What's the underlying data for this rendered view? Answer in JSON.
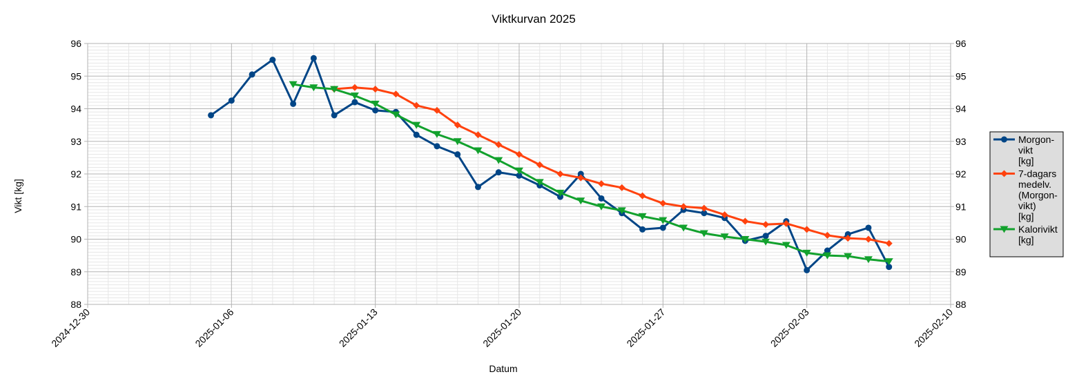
{
  "chart_data": {
    "type": "line",
    "title": "Viktkurvan 2025",
    "xlabel": "Datum",
    "ylabel": "Vikt [kg]",
    "ylim": [
      88,
      96
    ],
    "yticks": [
      88,
      89,
      90,
      91,
      92,
      93,
      94,
      95,
      96
    ],
    "xlim": [
      "2024-12-30",
      "2025-02-10"
    ],
    "xticks": [
      "2024-12-30",
      "2025-01-06",
      "2025-01-13",
      "2025-01-20",
      "2025-01-27",
      "2025-02-03",
      "2025-02-10"
    ],
    "grid": true,
    "legend_position": "right",
    "series": [
      {
        "name": "Morgon-\nvikt\n[kg]",
        "color": "#004586",
        "marker": "circle",
        "points": [
          [
            "2025-01-05",
            93.8
          ],
          [
            "2025-01-06",
            94.25
          ],
          [
            "2025-01-07",
            95.05
          ],
          [
            "2025-01-08",
            95.5
          ],
          [
            "2025-01-09",
            94.15
          ],
          [
            "2025-01-10",
            95.55
          ],
          [
            "2025-01-11",
            93.8
          ],
          [
            "2025-01-12",
            94.2
          ],
          [
            "2025-01-13",
            93.95
          ],
          [
            "2025-01-14",
            93.9
          ],
          [
            "2025-01-15",
            93.2
          ],
          [
            "2025-01-16",
            92.85
          ],
          [
            "2025-01-17",
            92.6
          ],
          [
            "2025-01-18",
            91.6
          ],
          [
            "2025-01-19",
            92.05
          ],
          [
            "2025-01-20",
            91.95
          ],
          [
            "2025-01-21",
            91.65
          ],
          [
            "2025-01-22",
            91.3
          ],
          [
            "2025-01-23",
            92.0
          ],
          [
            "2025-01-24",
            91.25
          ],
          [
            "2025-01-25",
            90.8
          ],
          [
            "2025-01-26",
            90.3
          ],
          [
            "2025-01-27",
            90.35
          ],
          [
            "2025-01-28",
            90.9
          ],
          [
            "2025-01-29",
            90.8
          ],
          [
            "2025-01-30",
            90.65
          ],
          [
            "2025-01-31",
            89.95
          ],
          [
            "2025-02-01",
            90.1
          ],
          [
            "2025-02-02",
            90.55
          ],
          [
            "2025-02-03",
            89.05
          ],
          [
            "2025-02-04",
            89.65
          ],
          [
            "2025-02-05",
            90.15
          ],
          [
            "2025-02-06",
            90.35
          ],
          [
            "2025-02-07",
            89.15
          ]
        ]
      },
      {
        "name": "7-dagars\nmedelv.\n(Morgon-\nvikt)\n[kg]",
        "color": "#ff420e",
        "marker": "diamond",
        "points": [
          [
            "2025-01-11",
            94.6
          ],
          [
            "2025-01-12",
            94.65
          ],
          [
            "2025-01-13",
            94.6
          ],
          [
            "2025-01-14",
            94.45
          ],
          [
            "2025-01-15",
            94.1
          ],
          [
            "2025-01-16",
            93.95
          ],
          [
            "2025-01-17",
            93.5
          ],
          [
            "2025-01-18",
            93.2
          ],
          [
            "2025-01-19",
            92.9
          ],
          [
            "2025-01-20",
            92.6
          ],
          [
            "2025-01-21",
            92.28
          ],
          [
            "2025-01-22",
            92.0
          ],
          [
            "2025-01-23",
            91.88
          ],
          [
            "2025-01-24",
            91.7
          ],
          [
            "2025-01-25",
            91.58
          ],
          [
            "2025-01-26",
            91.33
          ],
          [
            "2025-01-27",
            91.1
          ],
          [
            "2025-01-28",
            91.0
          ],
          [
            "2025-01-29",
            90.95
          ],
          [
            "2025-01-30",
            90.75
          ],
          [
            "2025-01-31",
            90.55
          ],
          [
            "2025-02-01",
            90.45
          ],
          [
            "2025-02-02",
            90.48
          ],
          [
            "2025-02-03",
            90.3
          ],
          [
            "2025-02-04",
            90.12
          ],
          [
            "2025-02-05",
            90.03
          ],
          [
            "2025-02-06",
            90.0
          ],
          [
            "2025-02-07",
            89.87
          ]
        ]
      },
      {
        "name": "Kalorivikt\n[kg]",
        "color": "#12a12d",
        "marker": "triangle-down",
        "points": [
          [
            "2025-01-09",
            94.75
          ],
          [
            "2025-01-10",
            94.65
          ],
          [
            "2025-01-11",
            94.6
          ],
          [
            "2025-01-12",
            94.4
          ],
          [
            "2025-01-13",
            94.15
          ],
          [
            "2025-01-14",
            93.82
          ],
          [
            "2025-01-15",
            93.5
          ],
          [
            "2025-01-16",
            93.22
          ],
          [
            "2025-01-17",
            93.0
          ],
          [
            "2025-01-18",
            92.72
          ],
          [
            "2025-01-19",
            92.42
          ],
          [
            "2025-01-20",
            92.1
          ],
          [
            "2025-01-21",
            91.75
          ],
          [
            "2025-01-22",
            91.42
          ],
          [
            "2025-01-23",
            91.18
          ],
          [
            "2025-01-24",
            91.0
          ],
          [
            "2025-01-25",
            90.88
          ],
          [
            "2025-01-26",
            90.7
          ],
          [
            "2025-01-27",
            90.58
          ],
          [
            "2025-01-28",
            90.35
          ],
          [
            "2025-01-29",
            90.18
          ],
          [
            "2025-01-30",
            90.08
          ],
          [
            "2025-01-31",
            90.0
          ],
          [
            "2025-02-01",
            89.92
          ],
          [
            "2025-02-02",
            89.82
          ],
          [
            "2025-02-03",
            89.58
          ],
          [
            "2025-02-04",
            89.5
          ],
          [
            "2025-02-05",
            89.48
          ],
          [
            "2025-02-06",
            89.38
          ],
          [
            "2025-02-07",
            89.32
          ]
        ]
      }
    ]
  }
}
